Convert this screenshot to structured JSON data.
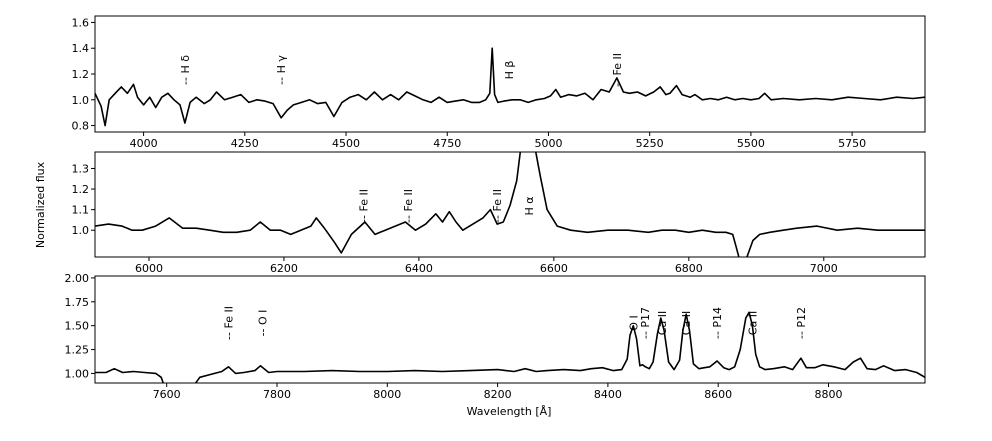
{
  "figure": {
    "ylabel": "Normalized flux",
    "xlabel": "Wavelength [Å]"
  },
  "chart_data": [
    {
      "type": "line",
      "panel": "top",
      "xlim": [
        3880,
        5930
      ],
      "ylim": [
        0.75,
        1.65
      ],
      "xticks": [
        "4000",
        "4250",
        "4500",
        "4750",
        "5000",
        "5250",
        "5500",
        "5750"
      ],
      "yticks": [
        "0.8",
        "1.0",
        "1.2",
        "1.4",
        "1.6"
      ],
      "line_labels": [
        {
          "text": "-- H δ",
          "x": 4102
        },
        {
          "text": "-- H γ",
          "x": 4340
        },
        {
          "text": "H β",
          "x": 4903
        },
        {
          "text": "-- Fe II",
          "x": 5169
        }
      ],
      "series": [
        {
          "x": [
            3880,
            3895,
            3905,
            3915,
            3930,
            3945,
            3960,
            3975,
            3985,
            4000,
            4015,
            4030,
            4045,
            4060,
            4075,
            4090,
            4102,
            4115,
            4130,
            4150,
            4165,
            4180,
            4200,
            4220,
            4240,
            4260,
            4280,
            4300,
            4320,
            4340,
            4355,
            4370,
            4390,
            4410,
            4430,
            4450,
            4470,
            4490,
            4510,
            4530,
            4550,
            4570,
            4590,
            4610,
            4630,
            4650,
            4670,
            4690,
            4710,
            4730,
            4750,
            4770,
            4790,
            4810,
            4830,
            4845,
            4855,
            4861,
            4867,
            4875,
            4890,
            4910,
            4930,
            4950,
            4970,
            4990,
            5005,
            5018,
            5030,
            5050,
            5070,
            5090,
            5110,
            5130,
            5150,
            5169,
            5185,
            5200,
            5220,
            5240,
            5260,
            5276,
            5290,
            5300,
            5316,
            5330,
            5350,
            5362,
            5380,
            5400,
            5420,
            5440,
            5460,
            5480,
            5500,
            5520,
            5534,
            5550,
            5580,
            5620,
            5660,
            5700,
            5740,
            5780,
            5820,
            5860,
            5900,
            5930
          ],
          "y": [
            1.05,
            0.95,
            0.8,
            1.0,
            1.05,
            1.1,
            1.05,
            1.12,
            1.02,
            0.96,
            1.02,
            0.94,
            1.02,
            1.05,
            1.0,
            0.96,
            0.82,
            0.98,
            1.02,
            0.97,
            1.0,
            1.06,
            1.0,
            1.02,
            1.04,
            0.98,
            1.0,
            0.99,
            0.97,
            0.86,
            0.92,
            0.96,
            0.98,
            1.0,
            0.97,
            0.98,
            0.87,
            0.98,
            1.02,
            1.04,
            1.0,
            1.06,
            1.0,
            1.04,
            1.0,
            1.06,
            1.03,
            1.0,
            0.98,
            1.02,
            0.98,
            0.99,
            1.0,
            0.98,
            0.98,
            1.0,
            1.05,
            1.4,
            1.04,
            0.98,
            0.99,
            1.0,
            1.0,
            0.98,
            1.0,
            1.01,
            1.03,
            1.08,
            1.02,
            1.04,
            1.03,
            1.05,
            1.0,
            1.08,
            1.06,
            1.17,
            1.06,
            1.05,
            1.06,
            1.03,
            1.06,
            1.1,
            1.04,
            1.05,
            1.11,
            1.04,
            1.02,
            1.04,
            1.0,
            1.01,
            1.0,
            1.02,
            1.0,
            1.01,
            1.0,
            1.01,
            1.05,
            1.0,
            1.01,
            1.0,
            1.01,
            1.0,
            1.02,
            1.01,
            1.0,
            1.02,
            1.01,
            1.02
          ]
        }
      ]
    },
    {
      "type": "line",
      "panel": "middle",
      "xlim": [
        5920,
        7150
      ],
      "ylim": [
        0.87,
        1.38
      ],
      "xticks": [
        "6000",
        "6200",
        "6400",
        "6600",
        "6800",
        "7000"
      ],
      "yticks": [
        "1.0",
        "1.1",
        "1.2",
        "1.3"
      ],
      "line_labels": [
        {
          "text": "-- Fe II",
          "x": 6318
        },
        {
          "text": "-- Fe II",
          "x": 6384
        },
        {
          "text": "-- Fe II",
          "x": 6516
        },
        {
          "text": "H α",
          "x": 6563
        }
      ],
      "series": [
        {
          "x": [
            5920,
            5940,
            5960,
            5975,
            5990,
            6010,
            6030,
            6050,
            6070,
            6090,
            6110,
            6130,
            6150,
            6165,
            6180,
            6195,
            6210,
            6225,
            6240,
            6248,
            6260,
            6275,
            6285,
            6300,
            6320,
            6335,
            6350,
            6365,
            6380,
            6395,
            6410,
            6425,
            6435,
            6445,
            6455,
            6465,
            6480,
            6495,
            6506,
            6516,
            6525,
            6535,
            6545,
            6551,
            6555,
            6560,
            6563,
            6567,
            6572,
            6580,
            6590,
            6605,
            6625,
            6650,
            6680,
            6710,
            6740,
            6760,
            6780,
            6800,
            6820,
            6840,
            6855,
            6865,
            6870,
            6875,
            6885,
            6895,
            6905,
            6920,
            6940,
            6960,
            6990,
            7020,
            7050,
            7080,
            7110,
            7150
          ],
          "y": [
            1.02,
            1.03,
            1.02,
            1.0,
            1.0,
            1.02,
            1.06,
            1.01,
            1.01,
            1.0,
            0.99,
            0.99,
            1.0,
            1.04,
            1.0,
            1.0,
            0.98,
            1.0,
            1.02,
            1.06,
            1.01,
            0.94,
            0.89,
            0.98,
            1.04,
            0.98,
            1.0,
            1.02,
            1.04,
            1.0,
            1.03,
            1.08,
            1.04,
            1.09,
            1.04,
            1.0,
            1.03,
            1.06,
            1.1,
            1.03,
            1.04,
            1.12,
            1.24,
            1.4,
            1.4,
            1.4,
            1.4,
            1.4,
            1.4,
            1.26,
            1.1,
            1.02,
            1.0,
            0.99,
            1.0,
            1.0,
            0.99,
            1.0,
            1.0,
            0.99,
            1.0,
            0.99,
            0.99,
            0.98,
            0.92,
            0.86,
            0.86,
            0.95,
            0.98,
            0.99,
            1.0,
            1.01,
            1.02,
            1.0,
            1.01,
            1.0,
            1.0,
            1.0
          ]
        }
      ]
    },
    {
      "type": "line",
      "panel": "bottom",
      "xlim": [
        7470,
        8975
      ],
      "ylim": [
        0.9,
        2.02
      ],
      "xticks": [
        "7600",
        "7800",
        "8000",
        "8200",
        "8400",
        "8600",
        "8800"
      ],
      "yticks": [
        "1.00",
        "1.25",
        "1.50",
        "1.75",
        "2.00"
      ],
      "line_labels": [
        {
          "text": "-- Fe II",
          "x": 7712
        },
        {
          "text": "-- O I",
          "x": 7774
        },
        {
          "text": "O I",
          "x": 8446
        },
        {
          "text": "-- P17",
          "x": 8467
        },
        {
          "text": "Ca II",
          "x": 8498
        },
        {
          "text": "Ca II",
          "x": 8542
        },
        {
          "text": "-- P14",
          "x": 8598
        },
        {
          "text": "Ca II",
          "x": 8662
        },
        {
          "text": "-- P12",
          "x": 8750
        }
      ],
      "series": [
        {
          "x": [
            7470,
            7490,
            7505,
            7520,
            7540,
            7560,
            7580,
            7590,
            7595,
            7610,
            7630,
            7650,
            7660,
            7680,
            7700,
            7712,
            7725,
            7740,
            7760,
            7770,
            7785,
            7800,
            7850,
            7900,
            7950,
            8000,
            8050,
            8100,
            8150,
            8200,
            8230,
            8250,
            8270,
            8290,
            8320,
            8350,
            8370,
            8390,
            8410,
            8425,
            8435,
            8440,
            8446,
            8452,
            8458,
            8463,
            8468,
            8475,
            8482,
            8490,
            8496,
            8502,
            8510,
            8520,
            8530,
            8536,
            8542,
            8548,
            8555,
            8565,
            8575,
            8585,
            8598,
            8610,
            8620,
            8630,
            8640,
            8650,
            8656,
            8662,
            8668,
            8675,
            8685,
            8700,
            8720,
            8735,
            8750,
            8760,
            8775,
            8790,
            8810,
            8830,
            8845,
            8858,
            8870,
            8885,
            8900,
            8920,
            8940,
            8960,
            8975
          ],
          "y": [
            1.01,
            1.01,
            1.05,
            1.01,
            1.02,
            1.01,
            1.0,
            0.96,
            0.88,
            0.88,
            0.88,
            0.88,
            0.96,
            0.99,
            1.02,
            1.07,
            1.0,
            1.01,
            1.03,
            1.08,
            1.01,
            1.02,
            1.02,
            1.03,
            1.02,
            1.02,
            1.03,
            1.02,
            1.03,
            1.04,
            1.02,
            1.05,
            1.02,
            1.03,
            1.04,
            1.03,
            1.05,
            1.06,
            1.03,
            1.04,
            1.15,
            1.4,
            1.5,
            1.36,
            1.08,
            1.09,
            1.07,
            1.05,
            1.12,
            1.42,
            1.58,
            1.45,
            1.12,
            1.04,
            1.14,
            1.45,
            1.62,
            1.45,
            1.1,
            1.05,
            1.06,
            1.07,
            1.13,
            1.06,
            1.04,
            1.07,
            1.25,
            1.58,
            1.64,
            1.5,
            1.2,
            1.07,
            1.04,
            1.05,
            1.07,
            1.04,
            1.16,
            1.06,
            1.06,
            1.09,
            1.07,
            1.04,
            1.12,
            1.16,
            1.05,
            1.04,
            1.08,
            1.03,
            1.04,
            1.01,
            0.96
          ]
        }
      ]
    }
  ]
}
